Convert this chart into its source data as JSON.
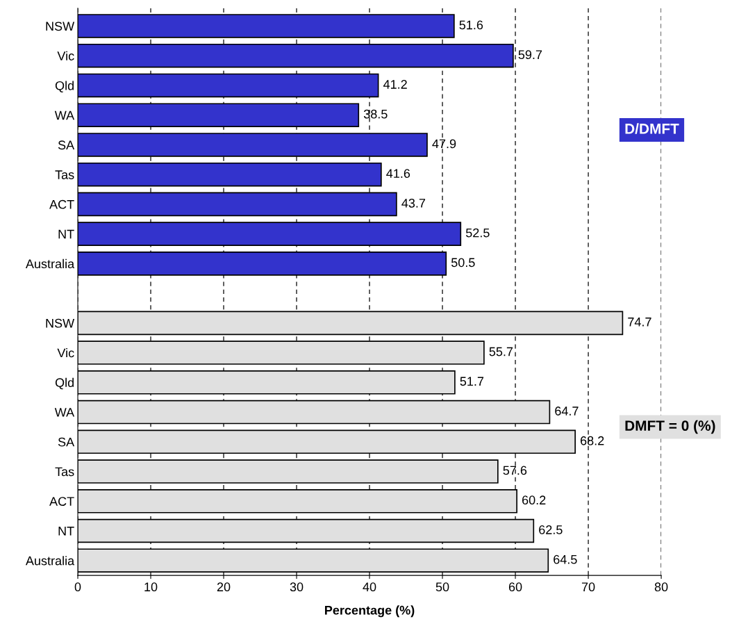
{
  "chart_data": {
    "type": "bar",
    "orientation": "horizontal",
    "xlabel": "Percentage (%)",
    "categories": [
      "NSW",
      "Vic",
      "Qld",
      "WA",
      "SA",
      "Tas",
      "ACT",
      "NT",
      "Australia",
      null,
      "NSW",
      "Vic",
      "Qld",
      "WA",
      "SA",
      "Tas",
      "ACT",
      "NT",
      "Australia"
    ],
    "series": [
      {
        "name": "D/DMFT",
        "color": "#3333cc",
        "values": [
          51.6,
          59.7,
          41.2,
          38.5,
          47.9,
          41.6,
          43.7,
          52.5,
          50.5,
          null,
          null,
          null,
          null,
          null,
          null,
          null,
          null,
          null,
          null
        ]
      },
      {
        "name": "DMFT = 0 (%)",
        "color": "#e0e0e0",
        "values": [
          null,
          null,
          null,
          null,
          null,
          null,
          null,
          null,
          null,
          null,
          74.7,
          55.7,
          51.7,
          64.7,
          68.2,
          57.6,
          60.2,
          62.5,
          64.5
        ]
      }
    ],
    "xlim": [
      0,
      80
    ],
    "xticks": [
      0,
      10,
      20,
      30,
      40,
      50,
      60,
      70,
      80
    ],
    "grid": "x",
    "data_labels": true,
    "legend": false
  }
}
